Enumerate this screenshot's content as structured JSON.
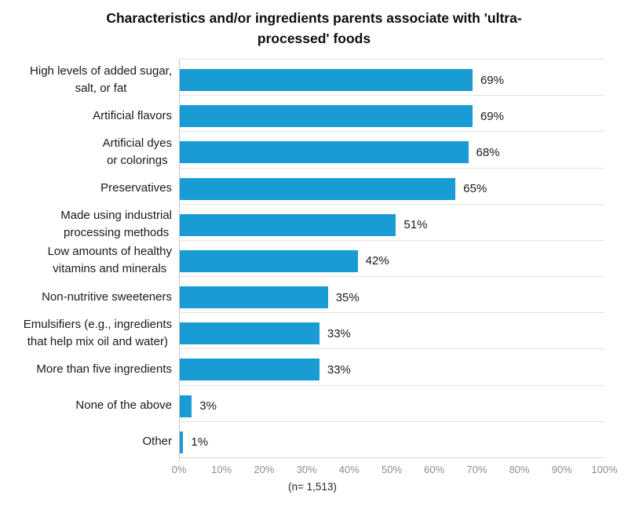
{
  "header": {
    "title_lines": [
      "Characteristics and/or ingredients parents associate with 'ultra-",
      "processed' foods"
    ]
  },
  "chart_data": {
    "type": "bar",
    "orientation": "horizontal",
    "title": "Characteristics and/or ingredients parents associate with 'ultra-processed' foods",
    "categories": [
      "High levels of added sugar, salt, or fat",
      "Artificial flavors",
      "Artificial dyes or colorings",
      "Preservatives",
      "Made using industrial processing methods",
      "Low amounts of healthy vitamins and minerals",
      "Non-nutritive sweeteners",
      "Emulsifiers (e.g., ingredients that help mix oil and water)",
      "More than five ingredients",
      "None of the above",
      "Other"
    ],
    "category_lines": [
      [
        "High levels of added sugar,",
        "salt, or fat"
      ],
      [
        "Artificial flavors"
      ],
      [
        "Artificial dyes",
        "or colorings"
      ],
      [
        "Preservatives"
      ],
      [
        "Made using industrial",
        "processing methods"
      ],
      [
        "Low amounts of healthy",
        "vitamins and minerals"
      ],
      [
        "Non-nutritive sweeteners"
      ],
      [
        "Emulsifiers (e.g., ingredients",
        "that help mix oil and water)"
      ],
      [
        "More than five ingredients"
      ],
      [
        "None of the above"
      ],
      [
        "Other"
      ]
    ],
    "values": [
      69,
      69,
      68,
      65,
      51,
      42,
      35,
      33,
      33,
      3,
      1
    ],
    "value_labels": [
      "69%",
      "69%",
      "68%",
      "65%",
      "51%",
      "42%",
      "35%",
      "33%",
      "33%",
      "3%",
      "1%"
    ],
    "xlim": [
      0,
      100
    ],
    "x_ticks": [
      "0%",
      "10%",
      "20%",
      "30%",
      "40%",
      "50%",
      "60%",
      "70%",
      "80%",
      "90%",
      "100%"
    ],
    "x_tick_values": [
      0,
      10,
      20,
      30,
      40,
      50,
      60,
      70,
      80,
      90,
      100
    ],
    "legend": "none",
    "grid": "horizontal row separators only",
    "bar_color": "#189CD3",
    "note": "(n= 1,513)"
  }
}
